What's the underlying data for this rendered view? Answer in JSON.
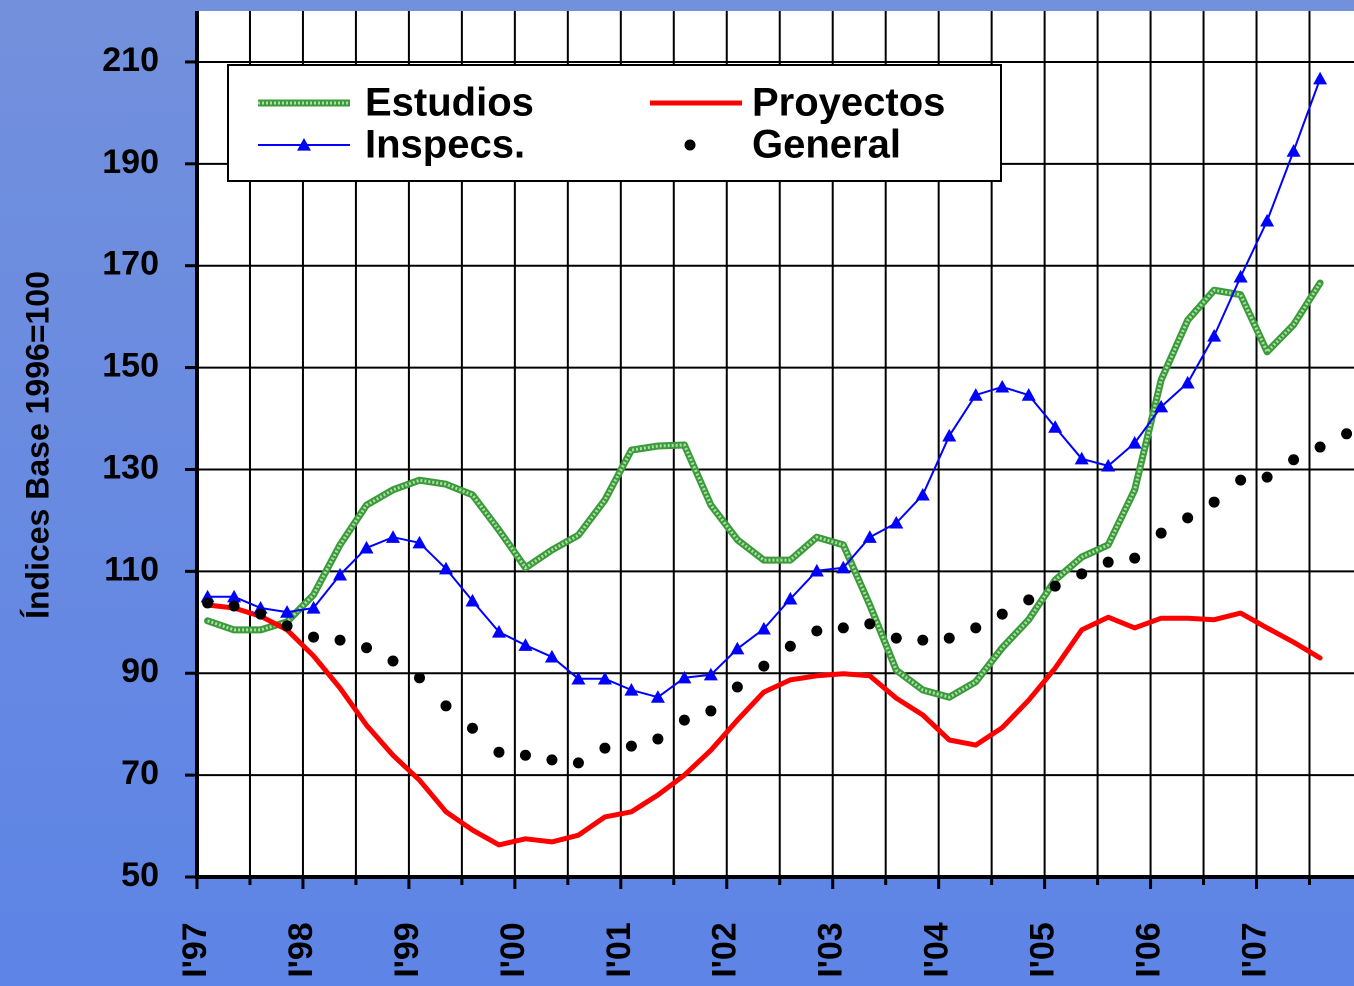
{
  "chart_data": {
    "type": "line",
    "y_label": "Índices Base 1996=100",
    "x": [
      1997.1,
      1997.35,
      1997.6,
      1997.85,
      1998.1,
      1998.35,
      1998.6,
      1998.85,
      1999.1,
      1999.35,
      1999.6,
      1999.85,
      2000.1,
      2000.35,
      2000.6,
      2000.85,
      2001.1,
      2001.35,
      2001.6,
      2001.85,
      2002.1,
      2002.35,
      2002.6,
      2002.85,
      2003.1,
      2003.35,
      2003.6,
      2003.85,
      2004.1,
      2004.35,
      2004.6,
      2004.85,
      2005.1,
      2005.35,
      2005.6,
      2005.85,
      2006.1,
      2006.35,
      2006.6,
      2006.85,
      2007.1,
      2007.35,
      2007.6,
      2007.85
    ],
    "series": [
      {
        "name": "Estudios",
        "color": "#3c9a3c",
        "style": "hatched",
        "values": [
          100.3,
          98.5,
          98.5,
          100.1,
          105.4,
          115.2,
          123.0,
          126.0,
          127.9,
          127.1,
          125.0,
          118.1,
          110.7,
          114.2,
          117.1,
          124.0,
          133.8,
          134.6,
          134.8,
          123.0,
          116.2,
          112.2,
          112.2,
          116.7,
          115.2,
          103.4,
          90.6,
          86.7,
          85.3,
          88.3,
          95.0,
          100.5,
          108.3,
          112.8,
          115.2,
          126.0,
          147.6,
          159.3,
          165.2,
          164.3,
          153.1,
          158.4,
          166.6,
          null
        ]
      },
      {
        "name": "Proyectos",
        "color": "#ff0000",
        "style": "thick",
        "values": [
          103.4,
          102.8,
          101.2,
          98.5,
          93.4,
          87.1,
          79.8,
          73.9,
          69.0,
          62.8,
          59.2,
          56.3,
          57.5,
          56.9,
          58.2,
          61.8,
          62.8,
          66.1,
          70.0,
          74.9,
          80.8,
          86.3,
          88.7,
          89.5,
          89.9,
          89.5,
          85.1,
          81.8,
          76.9,
          75.9,
          79.3,
          84.7,
          91.0,
          98.5,
          101.0,
          98.9,
          100.8,
          100.8,
          100.5,
          101.8,
          98.9,
          96.1,
          93.0,
          null
        ]
      },
      {
        "name": "Inspecs.",
        "color": "#0000ff",
        "style": "triangle",
        "values": [
          105.0,
          105.0,
          102.8,
          102.0,
          102.8,
          109.3,
          114.6,
          116.7,
          115.6,
          110.5,
          104.2,
          98.1,
          95.5,
          93.2,
          88.9,
          88.9,
          86.7,
          85.3,
          89.1,
          89.7,
          94.8,
          98.7,
          104.6,
          110.1,
          110.7,
          116.7,
          119.5,
          125.0,
          136.6,
          144.6,
          146.2,
          144.6,
          138.3,
          132.1,
          130.7,
          135.2,
          142.3,
          147.0,
          156.2,
          167.8,
          178.8,
          192.5,
          206.7,
          null
        ]
      },
      {
        "name": "General",
        "color": "#000000",
        "style": "dots",
        "values": [
          103.8,
          103.2,
          101.6,
          99.3,
          97.1,
          96.5,
          95.0,
          92.4,
          89.1,
          83.6,
          79.2,
          74.5,
          73.9,
          73.0,
          72.4,
          75.3,
          75.7,
          77.1,
          80.8,
          82.6,
          87.3,
          91.4,
          95.3,
          98.3,
          98.9,
          99.7,
          96.9,
          96.5,
          96.9,
          98.9,
          101.6,
          104.4,
          107.1,
          109.5,
          111.8,
          112.6,
          117.5,
          120.5,
          123.6,
          127.9,
          128.5,
          131.9,
          134.4,
          137.0
        ]
      }
    ],
    "xlim": [
      1997,
      2007.92
    ],
    "xticks": [
      {
        "value": 1997,
        "label": "I'97"
      },
      {
        "value": 1998,
        "label": "I'98"
      },
      {
        "value": 1999,
        "label": "I'99"
      },
      {
        "value": 2000,
        "label": "I'00"
      },
      {
        "value": 2001,
        "label": "I'01"
      },
      {
        "value": 2002,
        "label": "I'02"
      },
      {
        "value": 2003,
        "label": "I'03"
      },
      {
        "value": 2004,
        "label": "I'04"
      },
      {
        "value": 2005,
        "label": "I'05"
      },
      {
        "value": 2006,
        "label": "I'06"
      },
      {
        "value": 2007,
        "label": "I'07"
      }
    ],
    "xminorticks": [
      1997.5,
      1998.5,
      1999.5,
      2000.5,
      2001.5,
      2002.5,
      2003.5,
      2004.5,
      2005.5,
      2006.5,
      2007.5
    ],
    "ylim": [
      50,
      220
    ],
    "yticks": [
      50,
      70,
      90,
      110,
      130,
      150,
      170,
      190,
      210
    ],
    "grid": true,
    "legend": "upper left"
  }
}
